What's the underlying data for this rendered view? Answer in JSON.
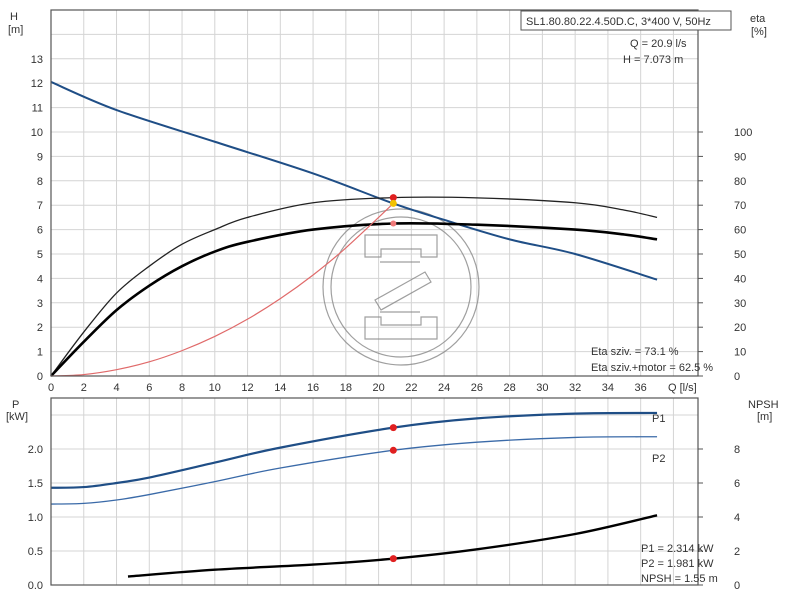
{
  "chart_data": [
    {
      "type": "line",
      "title": "SL1.80.80.22.4.50D.C, 3*400 V, 50Hz",
      "xlabel": "Q [l/s]",
      "ylabel": "H\n[m]",
      "ylabel_right": "eta\n[%]",
      "xlim": [
        0,
        39.5
      ],
      "ylim": [
        0,
        15
      ],
      "ylim_right": [
        0,
        150
      ],
      "x_ticks": [
        0,
        2,
        4,
        6,
        8,
        10,
        12,
        14,
        16,
        18,
        20,
        22,
        24,
        26,
        28,
        30,
        32,
        34,
        36
      ],
      "y_ticks": [
        0,
        1,
        2,
        3,
        4,
        5,
        6,
        7,
        8,
        9,
        10,
        11,
        12,
        13
      ],
      "y_ticks_right": [
        0,
        10,
        20,
        30,
        40,
        50,
        60,
        70,
        80,
        90,
        100
      ],
      "grid": true,
      "series": [
        {
          "axis": "left",
          "color": "#1f4e86",
          "x": [
            0,
            4,
            10,
            16,
            20.9,
            24,
            28,
            32,
            37
          ],
          "y": [
            12.05,
            10.9,
            9.6,
            8.3,
            7.07,
            6.4,
            5.6,
            5.0,
            3.95
          ]
        },
        {
          "axis": "right",
          "color": "#222222",
          "x": [
            0,
            2,
            4,
            6,
            8,
            10,
            12,
            16,
            20.9,
            26,
            32,
            35,
            37
          ],
          "y": [
            0,
            18,
            34,
            45,
            54,
            60,
            65,
            71,
            73.1,
            73,
            71,
            68,
            65
          ]
        },
        {
          "axis": "right",
          "color": "#000000",
          "x": [
            0,
            2,
            4,
            6,
            8,
            10,
            12,
            16,
            20.9,
            26,
            32,
            35,
            37
          ],
          "y": [
            0,
            14,
            27,
            37,
            45,
            51,
            55,
            60,
            62.5,
            62,
            60,
            58,
            56
          ]
        },
        {
          "axis": "left",
          "color": "#e06a6a",
          "x": [
            0,
            2,
            4,
            6,
            8,
            10,
            12,
            14,
            16,
            18,
            20.9
          ],
          "y": [
            0,
            0.06,
            0.26,
            0.58,
            1.04,
            1.62,
            2.33,
            3.17,
            4.14,
            5.25,
            7.07
          ]
        }
      ],
      "operating_point": {
        "Q": 20.9,
        "H": 7.073,
        "eta_pump": 73.1,
        "eta_total": 62.5
      },
      "annotations": {
        "q": "Q = 20.9 l/s",
        "h": "H = 7.073 m",
        "eta_pump": "Eta sziv. = 73.1 %",
        "eta_total": "Eta sziv.+motor = 62.5 %"
      }
    },
    {
      "type": "line",
      "ylabel": "P\n[kW]",
      "ylabel_right": "NPSH\n[m]",
      "xlim": [
        0,
        39.5
      ],
      "ylim": [
        0,
        2.75
      ],
      "ylim_right": [
        0,
        11
      ],
      "y_ticks": [
        0.0,
        0.5,
        1.0,
        1.5,
        2.0
      ],
      "y_ticks_right": [
        0,
        2,
        4,
        6,
        8
      ],
      "grid": true,
      "series": [
        {
          "name": "P1",
          "axis": "left",
          "color": "#1f4e86",
          "x": [
            0,
            2,
            4,
            6,
            10,
            14,
            20.9,
            26,
            32,
            37
          ],
          "y": [
            1.43,
            1.44,
            1.5,
            1.58,
            1.8,
            2.02,
            2.314,
            2.45,
            2.52,
            2.53
          ]
        },
        {
          "name": "P2",
          "axis": "left",
          "color": "#3a6aa8",
          "x": [
            0,
            2,
            4,
            6,
            10,
            14,
            20.9,
            26,
            32,
            37
          ],
          "y": [
            1.19,
            1.2,
            1.25,
            1.33,
            1.52,
            1.72,
            1.981,
            2.1,
            2.17,
            2.18
          ]
        },
        {
          "axis": "right",
          "color": "#000000",
          "x": [
            4.7,
            10,
            16,
            20.9,
            26,
            32,
            37
          ],
          "y": [
            0.5,
            0.9,
            1.2,
            1.55,
            2.1,
            3.0,
            4.1
          ]
        }
      ],
      "operating_point": {
        "Q": 20.9,
        "P1": 2.314,
        "P2": 1.981,
        "NPSH": 1.55
      },
      "annotations": {
        "p1": "P1 = 2.314 kW",
        "p2": "P2 = 1.981 kW",
        "npsh": "NPSH = 1.55 m"
      }
    }
  ]
}
